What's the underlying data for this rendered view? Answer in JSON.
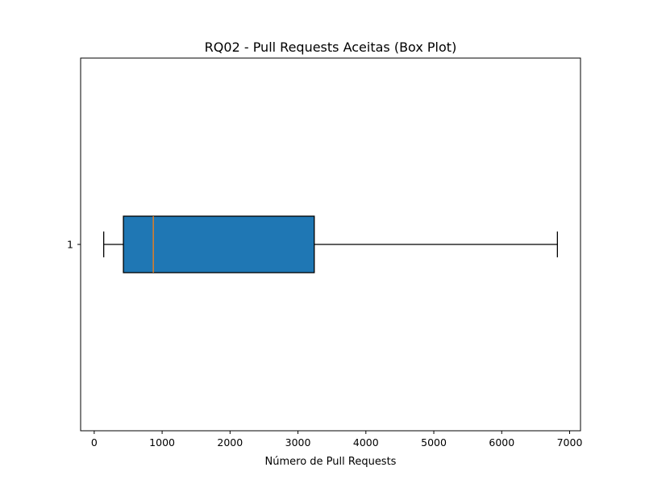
{
  "chart_data": {
    "type": "box",
    "orientation": "horizontal",
    "title": "RQ02 - Pull Requests Aceitas (Box Plot)",
    "xlabel": "Número de Pull Requests",
    "ylabel": "",
    "xlim": [
      -200,
      7160
    ],
    "x_ticks": [
      0,
      1000,
      2000,
      3000,
      4000,
      5000,
      6000,
      7000
    ],
    "categories": [
      "1"
    ],
    "boxes": [
      {
        "label": "1",
        "whisker_low": 140,
        "q1": 430,
        "median": 870,
        "q3": 3240,
        "whisker_high": 6820
      }
    ],
    "colors": {
      "box_fill": "#1f77b4",
      "box_edge": "#000000",
      "median": "#ff7f0e",
      "whisker": "#000000"
    },
    "grid": false,
    "legend": "none"
  }
}
